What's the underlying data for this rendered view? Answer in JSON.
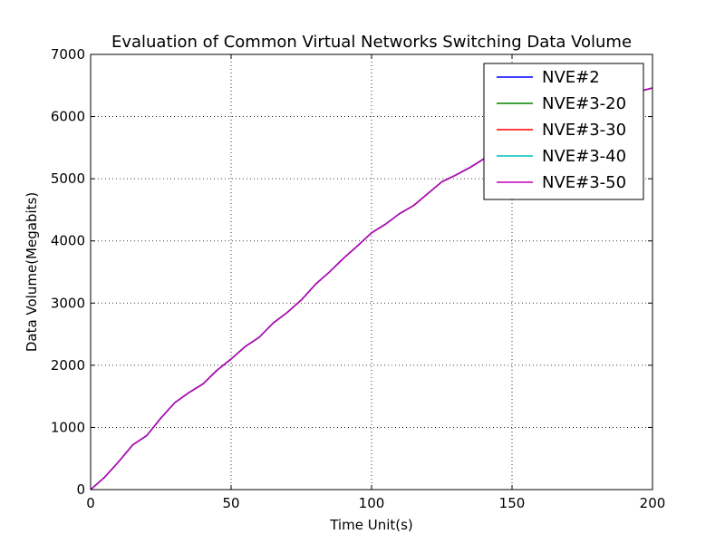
{
  "chart_data": {
    "type": "line",
    "title": "Evaluation of Common Virtual Networks Switching Data Volume",
    "xlabel": "Time Unit(s)",
    "ylabel": "Data Volume(Megabits)",
    "xlim": [
      0,
      200
    ],
    "ylim": [
      0,
      7000
    ],
    "xticks": [
      0,
      50,
      100,
      150,
      200
    ],
    "yticks": [
      0,
      1000,
      2000,
      3000,
      4000,
      5000,
      6000,
      7000
    ],
    "grid": true,
    "legend_position": "top-right",
    "x": [
      0,
      5,
      10,
      15,
      20,
      25,
      30,
      35,
      40,
      45,
      50,
      55,
      60,
      65,
      70,
      75,
      80,
      85,
      90,
      95,
      100,
      105,
      110,
      115,
      120,
      125,
      130,
      135,
      140,
      145,
      150,
      155,
      160,
      165,
      170,
      175,
      180,
      185,
      190,
      195,
      200
    ],
    "series": [
      {
        "name": "NVE#2",
        "color": "#0000ff",
        "values": [
          0,
          200,
          450,
          720,
          870,
          1150,
          1400,
          1560,
          1700,
          1920,
          2100,
          2300,
          2450,
          2680,
          2850,
          3050,
          3300,
          3500,
          3720,
          3920,
          4130,
          4270,
          4440,
          4570,
          4760,
          4950,
          5060,
          5180,
          5320,
          5440,
          5540,
          5650,
          5760,
          5870,
          5970,
          6060,
          6150,
          6240,
          6330,
          6400,
          6460
        ]
      },
      {
        "name": "NVE#3-20",
        "color": "#008000",
        "values": [
          0,
          200,
          450,
          720,
          870,
          1150,
          1400,
          1560,
          1700,
          1920,
          2100,
          2300,
          2450,
          2680,
          2850,
          3050,
          3300,
          3500,
          3720,
          3920,
          4130,
          4270,
          4440,
          4570,
          4760,
          4950,
          5060,
          5180,
          5320,
          5440,
          5540,
          5650,
          5760,
          5870,
          5970,
          6060,
          6150,
          6240,
          6330,
          6400,
          6460
        ]
      },
      {
        "name": "NVE#3-30",
        "color": "#ff0000",
        "values": [
          0,
          200,
          450,
          720,
          870,
          1150,
          1400,
          1560,
          1700,
          1920,
          2100,
          2300,
          2450,
          2680,
          2850,
          3050,
          3300,
          3500,
          3720,
          3920,
          4130,
          4270,
          4440,
          4570,
          4760,
          4950,
          5060,
          5180,
          5320,
          5440,
          5540,
          5650,
          5760,
          5870,
          5970,
          6060,
          6150,
          6240,
          6330,
          6400,
          6460
        ]
      },
      {
        "name": "NVE#3-40",
        "color": "#00bfbf",
        "values": [
          0,
          200,
          450,
          720,
          870,
          1150,
          1400,
          1560,
          1700,
          1920,
          2100,
          2300,
          2450,
          2680,
          2850,
          3050,
          3300,
          3500,
          3720,
          3920,
          4130,
          4270,
          4440,
          4570,
          4760,
          4950,
          5060,
          5180,
          5320,
          5440,
          5540,
          5650,
          5760,
          5870,
          5970,
          6060,
          6150,
          6240,
          6330,
          6400,
          6460
        ]
      },
      {
        "name": "NVE#3-50",
        "color": "#bf00bf",
        "values": [
          0,
          200,
          450,
          720,
          870,
          1150,
          1400,
          1560,
          1700,
          1920,
          2100,
          2300,
          2450,
          2680,
          2850,
          3050,
          3300,
          3500,
          3720,
          3920,
          4130,
          4270,
          4440,
          4570,
          4760,
          4950,
          5060,
          5180,
          5320,
          5440,
          5540,
          5650,
          5760,
          5870,
          5970,
          6060,
          6150,
          6240,
          6330,
          6400,
          6460
        ]
      }
    ]
  }
}
